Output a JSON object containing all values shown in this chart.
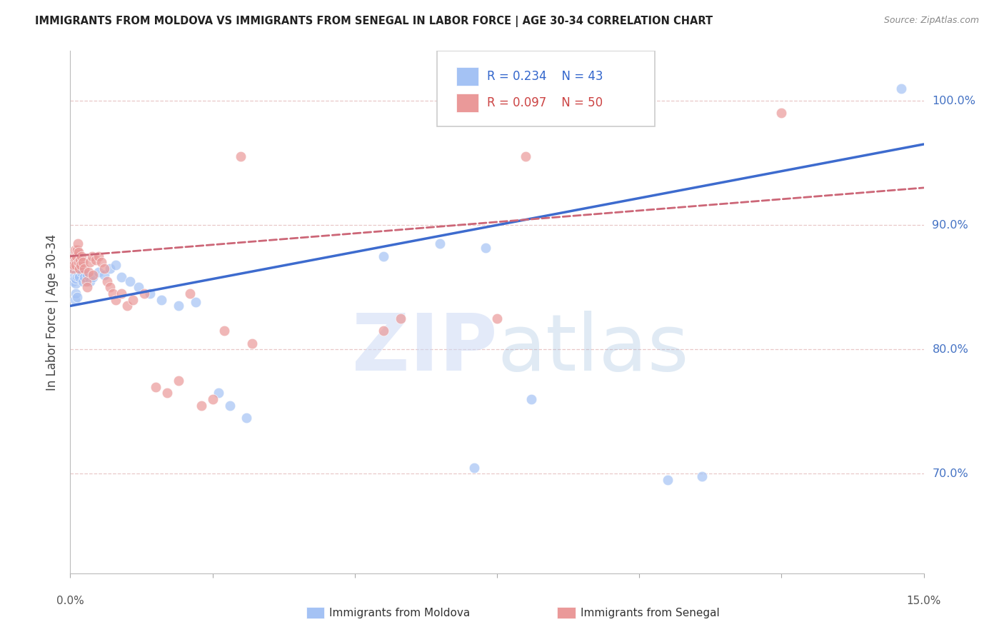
{
  "title": "IMMIGRANTS FROM MOLDOVA VS IMMIGRANTS FROM SENEGAL IN LABOR FORCE | AGE 30-34 CORRELATION CHART",
  "source": "Source: ZipAtlas.com",
  "ylabel": "In Labor Force | Age 30-34",
  "xlim": [
    0.0,
    15.0
  ],
  "ylim": [
    62.0,
    104.0
  ],
  "yticks": [
    70.0,
    80.0,
    90.0,
    100.0
  ],
  "ytick_labels": [
    "70.0%",
    "80.0%",
    "90.0%",
    "100.0%"
  ],
  "blue_scatter_color": "#a4c2f4",
  "pink_scatter_color": "#ea9999",
  "blue_line_color": "#3d6bce",
  "pink_line_color": "#cc6677",
  "background_color": "#ffffff",
  "grid_color": "#e8c8c8",
  "moldova_x": [
    0.05,
    0.06,
    0.07,
    0.08,
    0.09,
    0.1,
    0.11,
    0.12,
    0.13,
    0.14,
    0.15,
    0.16,
    0.17,
    0.18,
    0.2,
    0.22,
    0.25,
    0.28,
    0.3,
    0.35,
    0.4,
    0.5,
    0.6,
    0.7,
    0.8,
    0.9,
    1.05,
    1.2,
    1.4,
    1.6,
    1.9,
    2.2,
    2.6,
    2.8,
    3.1,
    5.5,
    6.5,
    7.1,
    8.1,
    10.5,
    11.1,
    14.6,
    7.3
  ],
  "moldova_y": [
    85.5,
    86.2,
    85.8,
    86.0,
    85.3,
    85.7,
    86.1,
    85.9,
    86.3,
    85.5,
    86.0,
    85.8,
    86.4,
    86.2,
    85.5,
    85.8,
    86.0,
    85.5,
    85.8,
    86.2,
    85.5,
    85.2,
    86.0,
    86.5,
    86.8,
    85.8,
    85.5,
    85.0,
    84.5,
    84.0,
    83.5,
    83.8,
    76.5,
    75.5,
    74.5,
    87.5,
    88.5,
    70.5,
    76.0,
    69.5,
    69.8,
    101.0,
    88.2
  ],
  "senegal_x": [
    0.04,
    0.05,
    0.06,
    0.07,
    0.08,
    0.09,
    0.1,
    0.11,
    0.12,
    0.13,
    0.14,
    0.15,
    0.16,
    0.17,
    0.18,
    0.2,
    0.22,
    0.25,
    0.28,
    0.3,
    0.32,
    0.35,
    0.38,
    0.4,
    0.45,
    0.5,
    0.55,
    0.6,
    0.65,
    0.7,
    0.75,
    0.8,
    0.9,
    1.0,
    1.1,
    1.3,
    1.5,
    1.7,
    1.9,
    2.1,
    2.3,
    2.5,
    2.7,
    3.0,
    3.2,
    5.5,
    5.8,
    7.5,
    8.0,
    12.5
  ],
  "senegal_y": [
    86.5,
    87.2,
    86.8,
    87.5,
    88.0,
    87.2,
    86.8,
    87.5,
    88.0,
    88.5,
    87.8,
    87.0,
    86.5,
    87.2,
    86.8,
    87.5,
    87.0,
    86.5,
    85.5,
    85.0,
    86.2,
    87.0,
    87.5,
    86.0,
    87.2,
    87.5,
    87.0,
    86.5,
    85.5,
    85.0,
    84.5,
    84.0,
    84.5,
    83.5,
    84.0,
    84.5,
    77.0,
    76.5,
    77.5,
    84.5,
    75.5,
    76.0,
    81.5,
    95.5,
    80.5,
    81.5,
    82.5,
    82.5,
    95.5,
    99.0
  ],
  "legend_label_blue": "Immigrants from Moldova",
  "legend_label_pink": "Immigrants from Senegal"
}
